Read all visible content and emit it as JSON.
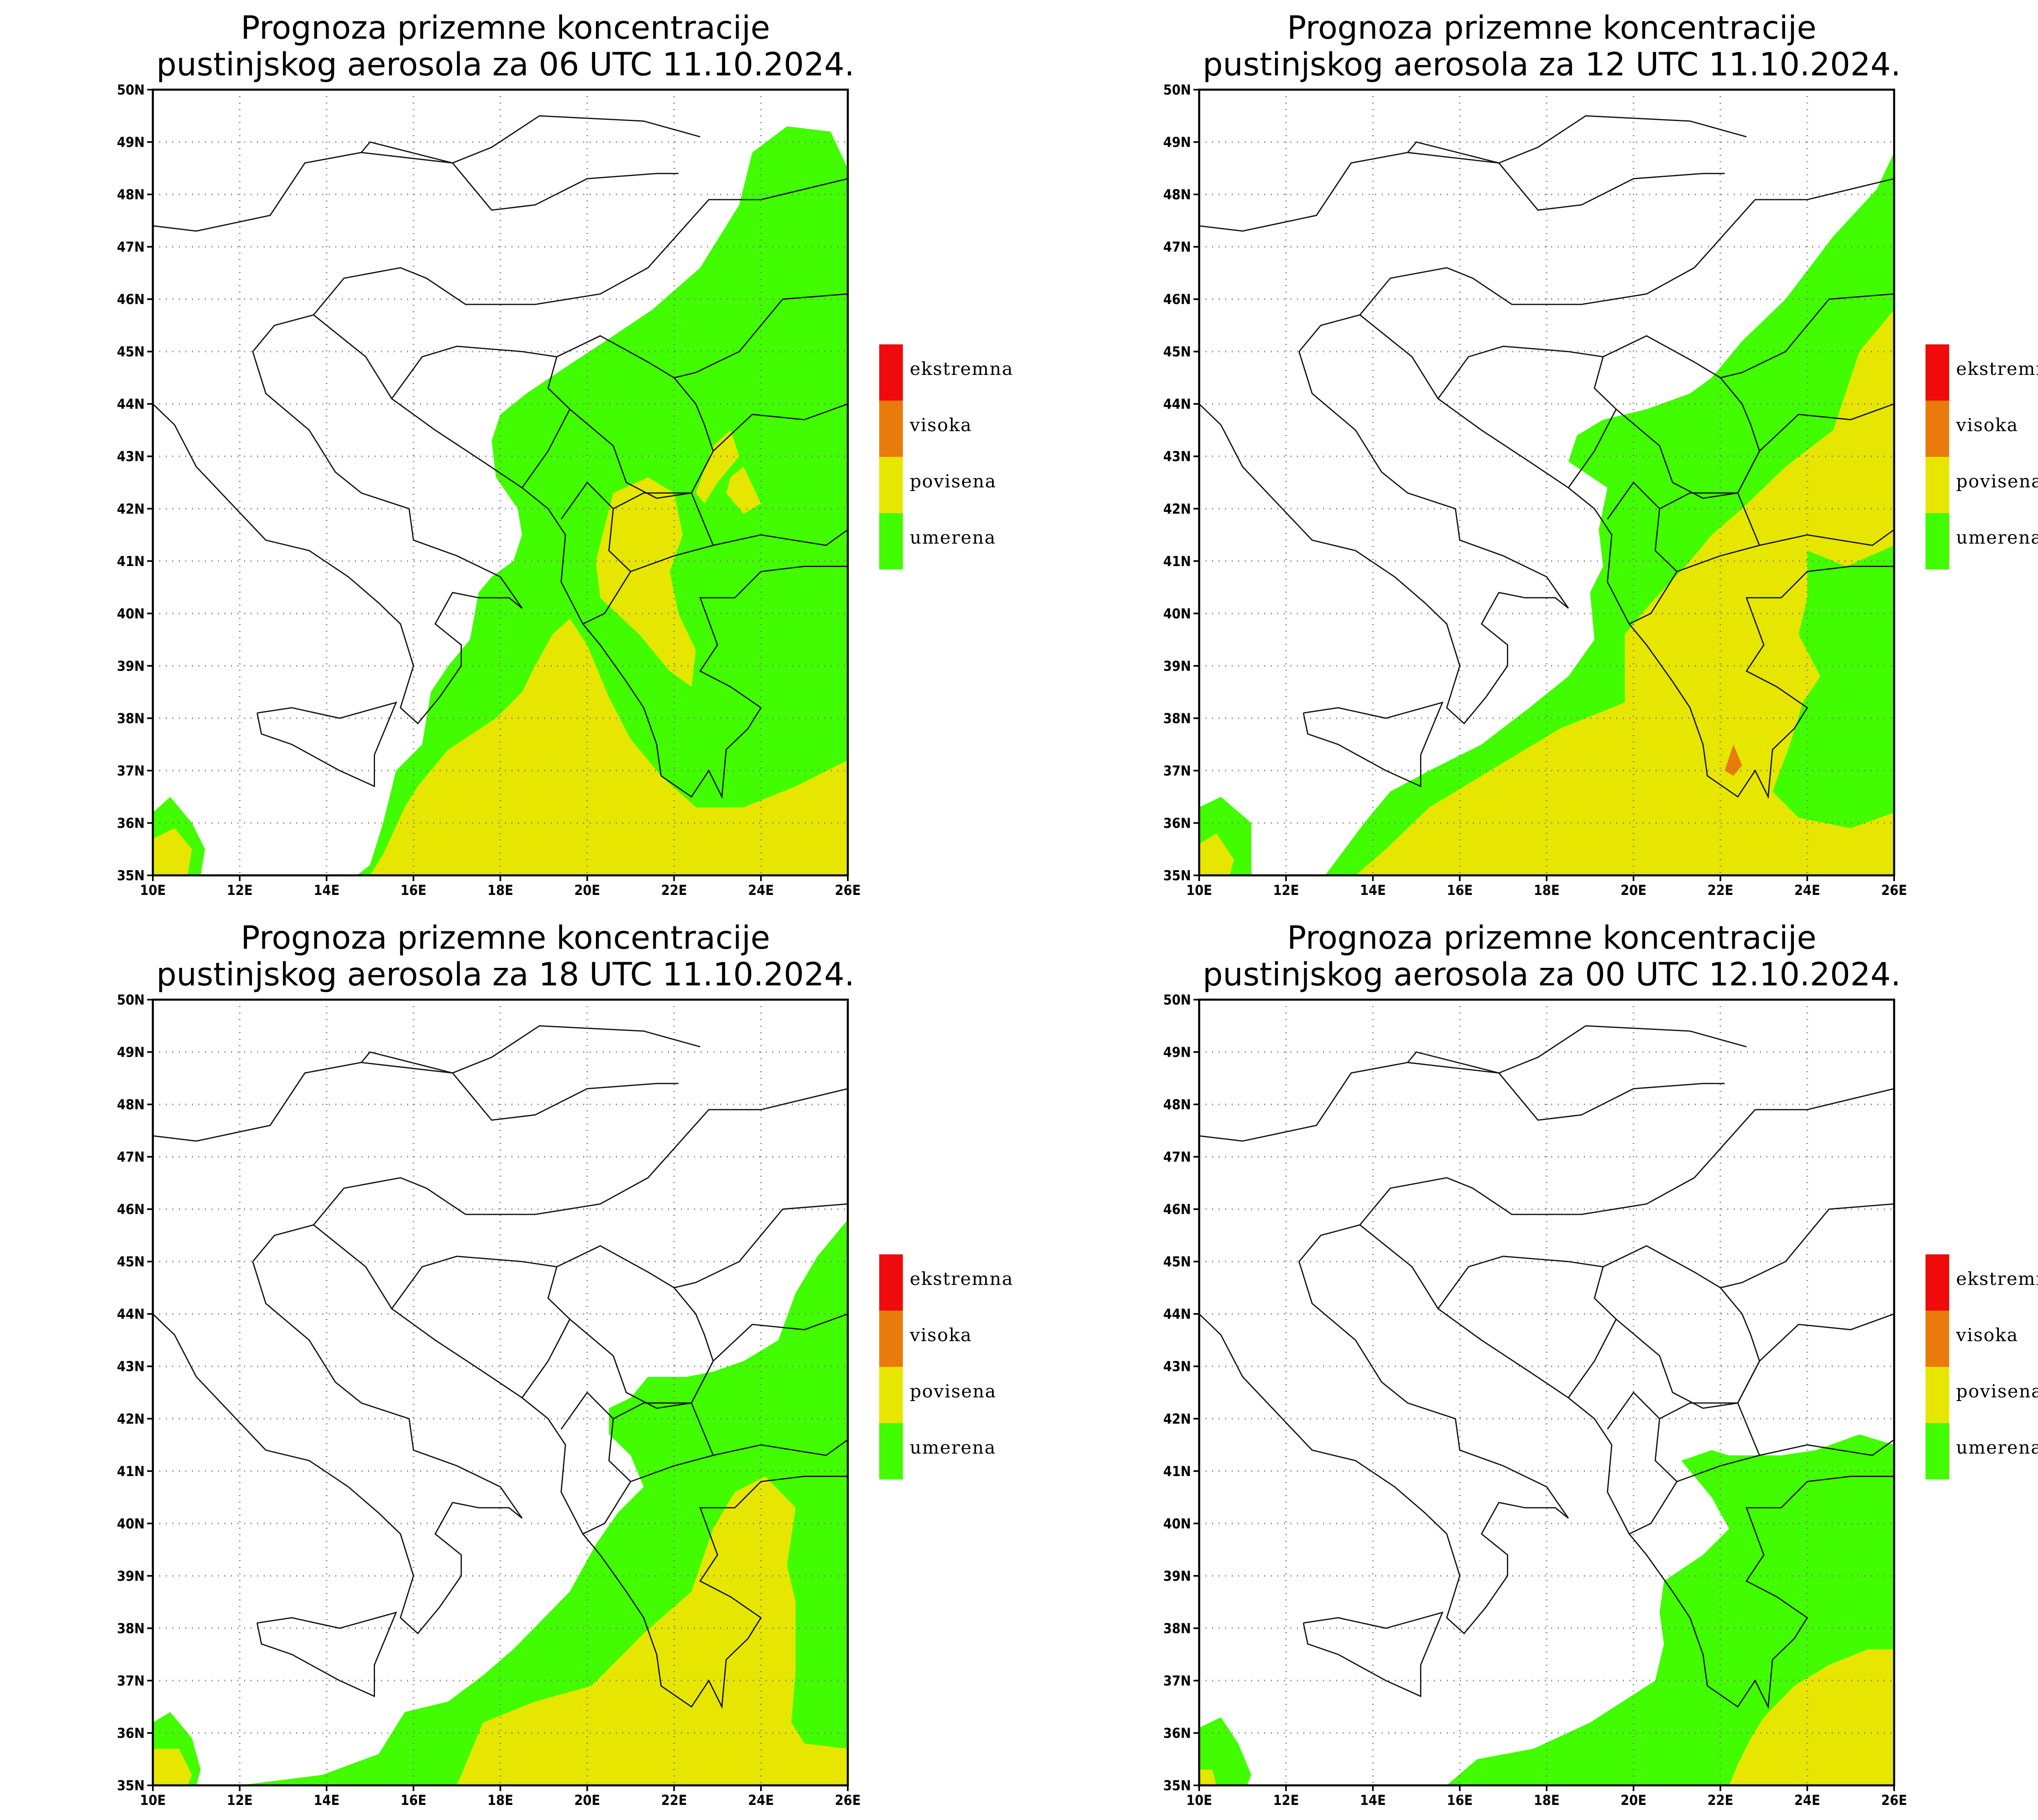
{
  "colors": {
    "umerena": "#41fd00",
    "povisena": "#e6e600",
    "visoka": "#e87b0c",
    "ekstremna": "#ef0b0b"
  },
  "legend": [
    "ekstremna",
    "visoka",
    "povisena",
    "umerena"
  ],
  "lat_labels": [
    "35N",
    "36N",
    "37N",
    "38N",
    "39N",
    "40N",
    "41N",
    "42N",
    "43N",
    "44N",
    "45N",
    "46N",
    "47N",
    "48N",
    "49N",
    "50N"
  ],
  "lon_labels": [
    "10E",
    "12E",
    "14E",
    "16E",
    "18E",
    "20E",
    "22E",
    "24E",
    "26E"
  ],
  "panels": [
    {
      "title1": "Prognoza prizemne koncentracije",
      "title2": "pustinjskog aerosola za 06 UTC 11.10.2024.",
      "regions": [
        {
          "level": "umerena",
          "pts": [
            [
              26,
              35
            ],
            [
              26,
              48.5
            ],
            [
              25.6,
              49.2
            ],
            [
              24.6,
              49.3
            ],
            [
              23.8,
              48.8
            ],
            [
              23.5,
              47.8
            ],
            [
              22.6,
              46.6
            ],
            [
              21.5,
              45.8
            ],
            [
              20.6,
              45.3
            ],
            [
              19.5,
              44.7
            ],
            [
              18.6,
              44.2
            ],
            [
              18,
              43.8
            ],
            [
              17.8,
              43.3
            ],
            [
              17.9,
              42.6
            ],
            [
              18.4,
              42
            ],
            [
              18.5,
              41.5
            ],
            [
              18.3,
              41
            ],
            [
              17.8,
              40.7
            ],
            [
              17.5,
              40.4
            ],
            [
              17.3,
              39.5
            ],
            [
              16.8,
              39
            ],
            [
              16.4,
              38.5
            ],
            [
              16.2,
              37.5
            ],
            [
              15.6,
              37
            ],
            [
              15.3,
              36
            ],
            [
              15,
              35.2
            ],
            [
              14.7,
              35
            ]
          ]
        },
        {
          "level": "umerena",
          "pts": [
            [
              10,
              36.2
            ],
            [
              10.4,
              36.5
            ],
            [
              10.9,
              36
            ],
            [
              11.2,
              35.5
            ],
            [
              11.1,
              35
            ],
            [
              10,
              35
            ]
          ]
        },
        {
          "level": "povisena",
          "pts": [
            [
              26,
              35
            ],
            [
              26,
              37.2
            ],
            [
              24.8,
              36.7
            ],
            [
              23.6,
              36.3
            ],
            [
              22.5,
              36.3
            ],
            [
              21.7,
              36.9
            ],
            [
              21,
              37.6
            ],
            [
              20.5,
              38.4
            ],
            [
              20,
              39.4
            ],
            [
              19.6,
              39.9
            ],
            [
              19.2,
              39.6
            ],
            [
              18.8,
              39
            ],
            [
              18.5,
              38.5
            ],
            [
              17.9,
              38
            ],
            [
              16.8,
              37.4
            ],
            [
              16.1,
              36.7
            ],
            [
              15.8,
              36.3
            ],
            [
              15.3,
              35.4
            ],
            [
              15,
              35
            ]
          ]
        },
        {
          "level": "povisena",
          "pts": [
            [
              10,
              35.7
            ],
            [
              10.5,
              35.9
            ],
            [
              10.9,
              35.5
            ],
            [
              10.8,
              35
            ],
            [
              10,
              35
            ]
          ]
        },
        {
          "level": "povisena",
          "pts": [
            [
              20.6,
              42.3
            ],
            [
              21.4,
              42.6
            ],
            [
              22,
              42.3
            ],
            [
              22.2,
              41.5
            ],
            [
              21.9,
              40.8
            ],
            [
              22.1,
              40
            ],
            [
              22.5,
              39.3
            ],
            [
              22.4,
              38.6
            ],
            [
              21.9,
              38.9
            ],
            [
              21.2,
              39.6
            ],
            [
              20.3,
              40.3
            ],
            [
              20.2,
              41
            ]
          ]
        },
        {
          "level": "povisena",
          "pts": [
            [
              22.5,
              42.3
            ],
            [
              22.9,
              43.2
            ],
            [
              23.3,
              43.5
            ],
            [
              23.5,
              43
            ],
            [
              23,
              42.5
            ],
            [
              22.7,
              42.1
            ]
          ]
        },
        {
          "level": "povisena",
          "pts": [
            [
              23.2,
              42.3
            ],
            [
              23.6,
              41.9
            ],
            [
              24,
              42.1
            ],
            [
              23.6,
              42.8
            ],
            [
              23.3,
              42.6
            ]
          ]
        }
      ]
    },
    {
      "title1": "Prognoza prizemne koncentracije",
      "title2": "pustinjskog aerosola za 12 UTC 11.10.2024.",
      "regions": [
        {
          "level": "umerena",
          "pts": [
            [
              26,
              35
            ],
            [
              26,
              48.8
            ],
            [
              25.6,
              48.1
            ],
            [
              24.6,
              47.2
            ],
            [
              23.5,
              46
            ],
            [
              22.5,
              45.2
            ],
            [
              21.8,
              44.5
            ],
            [
              21.3,
              44.2
            ],
            [
              20.3,
              43.9
            ],
            [
              19.3,
              43.7
            ],
            [
              18.7,
              43.4
            ],
            [
              18.5,
              42.9
            ],
            [
              19.4,
              42.4
            ],
            [
              19.2,
              41.6
            ],
            [
              19.3,
              40.9
            ],
            [
              19,
              40.4
            ],
            [
              19.1,
              39.5
            ],
            [
              18.5,
              38.8
            ],
            [
              17.6,
              38.2
            ],
            [
              16.5,
              37.5
            ],
            [
              15.3,
              37
            ],
            [
              14.4,
              36.6
            ],
            [
              13.8,
              36
            ],
            [
              12.9,
              35
            ]
          ]
        },
        {
          "level": "umerena",
          "pts": [
            [
              10,
              36.3
            ],
            [
              10.5,
              36.5
            ],
            [
              11.2,
              36
            ],
            [
              11.2,
              35
            ],
            [
              10,
              35
            ]
          ]
        },
        {
          "level": "povisena",
          "pts": [
            [
              26,
              35
            ],
            [
              26,
              45.8
            ],
            [
              25.2,
              45
            ],
            [
              24.6,
              43.5
            ],
            [
              23.5,
              42.8
            ],
            [
              22.5,
              42
            ],
            [
              21.8,
              41.5
            ],
            [
              21.3,
              41
            ],
            [
              20.4,
              40.2
            ],
            [
              19.8,
              39.6
            ],
            [
              19.8,
              38.3
            ],
            [
              18.3,
              37.8
            ],
            [
              16.7,
              37
            ],
            [
              15.3,
              36.3
            ],
            [
              14.3,
              35.5
            ],
            [
              13.6,
              35
            ]
          ]
        },
        {
          "level": "povisena",
          "pts": [
            [
              10,
              35.6
            ],
            [
              10.4,
              35.8
            ],
            [
              10.8,
              35.3
            ],
            [
              10.7,
              35
            ],
            [
              10,
              35
            ]
          ]
        },
        {
          "level": "umerena",
          "pts": [
            [
              24,
              41.2
            ],
            [
              24.9,
              40.9
            ],
            [
              26,
              41.3
            ],
            [
              26,
              36.2
            ],
            [
              25,
              35.9
            ],
            [
              23.8,
              36.1
            ],
            [
              23.2,
              36.6
            ],
            [
              23.6,
              37.5
            ],
            [
              23.9,
              38.3
            ],
            [
              24.3,
              38.8
            ],
            [
              23.8,
              39.6
            ],
            [
              24,
              40.3
            ]
          ]
        },
        {
          "level": "visoka",
          "pts": [
            [
              22.3,
              37.5
            ],
            [
              22.5,
              37.1
            ],
            [
              22.3,
              36.9
            ],
            [
              22.1,
              37
            ]
          ]
        }
      ]
    },
    {
      "title1": "Prognoza prizemne koncentracije",
      "title2": "pustinjskog aerosola za 18 UTC 11.10.2024.",
      "regions": [
        {
          "level": "umerena",
          "pts": [
            [
              26,
              35
            ],
            [
              26,
              45.8
            ],
            [
              25.3,
              45.1
            ],
            [
              24.8,
              44.4
            ],
            [
              24.4,
              43.5
            ],
            [
              23.6,
              43.1
            ],
            [
              22.9,
              42.9
            ],
            [
              22.3,
              42.8
            ],
            [
              21.4,
              42.8
            ],
            [
              21,
              42.4
            ],
            [
              20.5,
              42.2
            ],
            [
              20.5,
              41.7
            ],
            [
              21,
              41.3
            ],
            [
              21.3,
              40.7
            ],
            [
              20.7,
              40.2
            ],
            [
              20.2,
              39.6
            ],
            [
              19.6,
              38.7
            ],
            [
              18.3,
              37.6
            ],
            [
              17.6,
              37.1
            ],
            [
              16.8,
              36.6
            ],
            [
              15.8,
              36.4
            ],
            [
              15.2,
              35.6
            ],
            [
              13.9,
              35.2
            ],
            [
              12,
              35
            ]
          ]
        },
        {
          "level": "umerena",
          "pts": [
            [
              10,
              36.2
            ],
            [
              10.4,
              36.4
            ],
            [
              10.9,
              35.9
            ],
            [
              11.1,
              35.3
            ],
            [
              11,
              35
            ],
            [
              10,
              35
            ]
          ]
        },
        {
          "level": "povisena",
          "pts": [
            [
              26,
              35
            ],
            [
              26,
              35.7
            ],
            [
              25,
              35.8
            ],
            [
              24.7,
              36.2
            ],
            [
              24.8,
              37.2
            ],
            [
              24.8,
              38.5
            ],
            [
              24.6,
              39.2
            ],
            [
              24.8,
              40.3
            ],
            [
              24.1,
              40.9
            ],
            [
              23.4,
              40.6
            ],
            [
              22.9,
              39.9
            ],
            [
              22.4,
              38.7
            ],
            [
              21.3,
              37.9
            ],
            [
              20.1,
              36.9
            ],
            [
              18.8,
              36.6
            ],
            [
              17.6,
              36.2
            ],
            [
              17,
              35
            ]
          ]
        },
        {
          "level": "povisena",
          "pts": [
            [
              10,
              35.7
            ],
            [
              10.6,
              35.7
            ],
            [
              10.9,
              35.2
            ],
            [
              10.8,
              35
            ],
            [
              10,
              35
            ]
          ]
        },
        {
          "level": "umerena",
          "pts": [
            [
              25.4,
              40.9
            ],
            [
              26,
              41.2
            ],
            [
              26,
              40.5
            ],
            [
              25.6,
              40.3
            ]
          ]
        }
      ]
    },
    {
      "title1": "Prognoza prizemne koncentracije",
      "title2": "pustinjskog aerosola za 00 UTC 12.10.2024.",
      "regions": [
        {
          "level": "umerena",
          "pts": [
            [
              26,
              35
            ],
            [
              26,
              41.5
            ],
            [
              25.2,
              41.7
            ],
            [
              24.2,
              41.4
            ],
            [
              23.4,
              41.3
            ],
            [
              22.2,
              41.3
            ],
            [
              21.8,
              41.4
            ],
            [
              21.1,
              41.2
            ],
            [
              21.8,
              40.5
            ],
            [
              22.2,
              39.9
            ],
            [
              21.6,
              39.4
            ],
            [
              20.7,
              38.9
            ],
            [
              20.6,
              38.3
            ],
            [
              20.7,
              37.7
            ],
            [
              20.5,
              37
            ],
            [
              19,
              36.2
            ],
            [
              17.7,
              35.7
            ],
            [
              16.4,
              35.5
            ],
            [
              15.7,
              35
            ]
          ]
        },
        {
          "level": "umerena",
          "pts": [
            [
              10,
              36.1
            ],
            [
              10.5,
              36.3
            ],
            [
              10.9,
              35.8
            ],
            [
              11.2,
              35.2
            ],
            [
              11.1,
              35
            ],
            [
              10,
              35
            ]
          ]
        },
        {
          "level": "povisena",
          "pts": [
            [
              26,
              35
            ],
            [
              26,
              37.6
            ],
            [
              25.4,
              37.6
            ],
            [
              24.5,
              37.3
            ],
            [
              23.7,
              36.9
            ],
            [
              23,
              36.3
            ],
            [
              22.7,
              35.9
            ],
            [
              22.4,
              35.4
            ],
            [
              22.2,
              35
            ]
          ]
        },
        {
          "level": "povisena",
          "pts": [
            [
              10,
              35.3
            ],
            [
              10.3,
              35.3
            ],
            [
              10.4,
              35
            ],
            [
              10,
              35
            ]
          ]
        }
      ]
    }
  ]
}
